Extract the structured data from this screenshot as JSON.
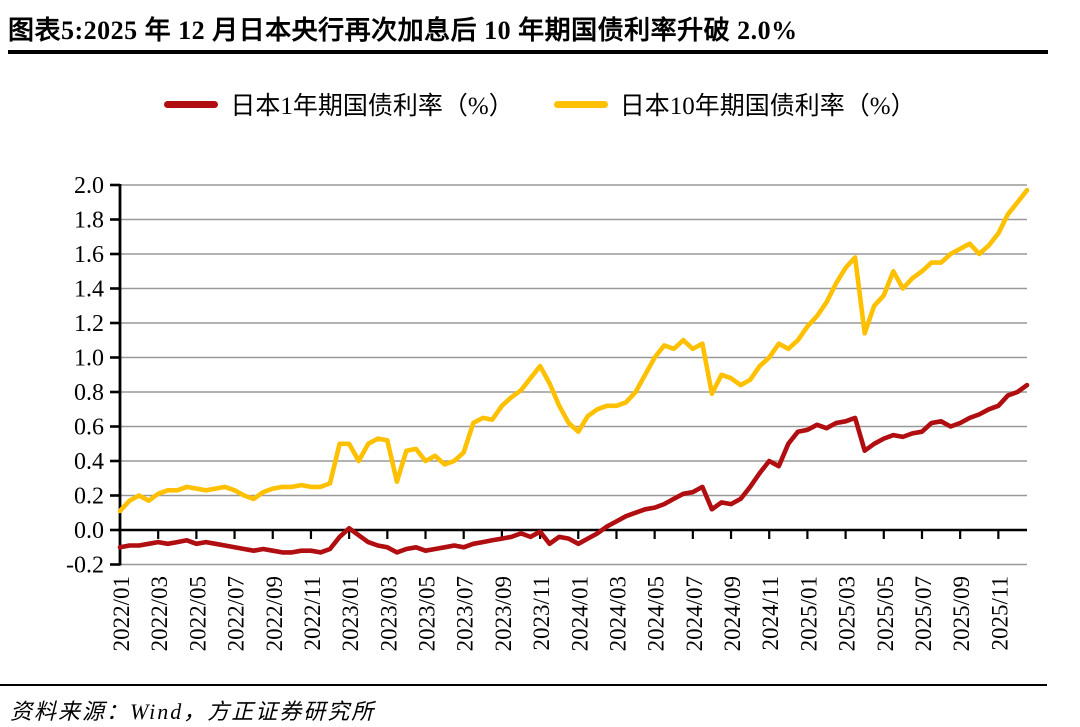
{
  "header": {
    "title": "图表5:2025 年 12 月日本央行再次加息后 10 年期国债利率升破 2.0%"
  },
  "footer": {
    "source": "资料来源：Wind，方正证券研究所"
  },
  "legend": {
    "items": [
      {
        "label": "日本1年期国债利率（%）",
        "color": "#B00E11"
      },
      {
        "label": "日本10年期国债利率（%）",
        "color": "#FFC000"
      }
    ]
  },
  "colors": {
    "series_1y": "#B00E11",
    "series_10y": "#FFC000",
    "gridline": "#999999",
    "axis": "#000000"
  },
  "chart_data": {
    "type": "line",
    "title": "2025 年 12 月日本央行再次加息后 10 年期国债利率升破 2.0%",
    "xlabel": "",
    "ylabel": "",
    "ylim": [
      -0.2,
      2.0
    ],
    "ytick_step": 0.2,
    "ytick_labels": [
      "2.0",
      "1.8",
      "1.6",
      "1.4",
      "1.2",
      "1.0",
      "0.8",
      "0.6",
      "0.4",
      "0.2",
      "0.0",
      "-0.2"
    ],
    "x_tick_labels": [
      "2022/01",
      "2022/03",
      "2022/05",
      "2022/07",
      "2022/09",
      "2022/11",
      "2023/01",
      "2023/03",
      "2023/05",
      "2023/07",
      "2023/09",
      "2023/11",
      "2024/01",
      "2024/03",
      "2024/05",
      "2024/07",
      "2024/09",
      "2024/11",
      "2025/01",
      "2025/03",
      "2025/05",
      "2025/07",
      "2025/09",
      "2025/11"
    ],
    "x_start": "2022/01",
    "x_end": "2025/12",
    "x_span_months": 47.5,
    "points_per_month": 2,
    "grid": "horizontal",
    "legend_position": "top",
    "series": [
      {
        "name": "日本1年期国债利率（%）",
        "color": "#B00E11",
        "values": [
          -0.1,
          -0.09,
          -0.09,
          -0.08,
          -0.07,
          -0.08,
          -0.07,
          -0.06,
          -0.08,
          -0.07,
          -0.08,
          -0.09,
          -0.1,
          -0.11,
          -0.12,
          -0.11,
          -0.12,
          -0.13,
          -0.13,
          -0.12,
          -0.12,
          -0.13,
          -0.11,
          -0.04,
          0.01,
          -0.03,
          -0.07,
          -0.09,
          -0.1,
          -0.13,
          -0.11,
          -0.1,
          -0.12,
          -0.11,
          -0.1,
          -0.09,
          -0.1,
          -0.08,
          -0.07,
          -0.06,
          -0.05,
          -0.04,
          -0.02,
          -0.04,
          -0.01,
          -0.08,
          -0.04,
          -0.05,
          -0.08,
          -0.05,
          -0.02,
          0.02,
          0.05,
          0.08,
          0.1,
          0.12,
          0.13,
          0.15,
          0.18,
          0.21,
          0.22,
          0.25,
          0.12,
          0.16,
          0.15,
          0.18,
          0.25,
          0.33,
          0.4,
          0.37,
          0.5,
          0.57,
          0.58,
          0.61,
          0.59,
          0.62,
          0.63,
          0.65,
          0.46,
          0.5,
          0.53,
          0.55,
          0.54,
          0.56,
          0.57,
          0.62,
          0.63,
          0.6,
          0.62,
          0.65,
          0.67,
          0.7,
          0.72,
          0.78,
          0.8,
          0.84
        ]
      },
      {
        "name": "日本10年期国债利率（%）",
        "color": "#FFC000",
        "values": [
          0.11,
          0.17,
          0.2,
          0.17,
          0.21,
          0.23,
          0.23,
          0.25,
          0.24,
          0.23,
          0.24,
          0.25,
          0.23,
          0.2,
          0.18,
          0.22,
          0.24,
          0.25,
          0.25,
          0.26,
          0.25,
          0.25,
          0.27,
          0.5,
          0.5,
          0.4,
          0.5,
          0.53,
          0.52,
          0.28,
          0.46,
          0.47,
          0.4,
          0.43,
          0.38,
          0.4,
          0.45,
          0.62,
          0.65,
          0.64,
          0.72,
          0.77,
          0.81,
          0.88,
          0.95,
          0.85,
          0.72,
          0.62,
          0.57,
          0.66,
          0.7,
          0.72,
          0.72,
          0.74,
          0.8,
          0.9,
          1.0,
          1.07,
          1.05,
          1.1,
          1.05,
          1.08,
          0.79,
          0.9,
          0.88,
          0.84,
          0.87,
          0.95,
          1.0,
          1.08,
          1.05,
          1.1,
          1.18,
          1.24,
          1.32,
          1.43,
          1.52,
          1.58,
          1.14,
          1.3,
          1.36,
          1.5,
          1.4,
          1.46,
          1.5,
          1.55,
          1.55,
          1.6,
          1.63,
          1.66,
          1.6,
          1.65,
          1.72,
          1.83,
          1.9,
          1.97
        ]
      }
    ]
  }
}
